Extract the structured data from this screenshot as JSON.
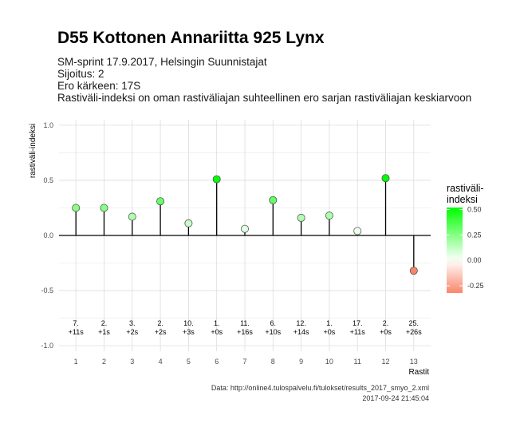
{
  "chart_data": {
    "type": "lollipop",
    "title": "D55 Kottonen Annariitta 925 Lynx",
    "subtitle_lines": [
      "SM-sprint 17.9.2017, Helsingin Suunnistajat",
      "Sijoitus: 2",
      "Ero kärkeen: 17S",
      "Rastiväli-indeksi on oman rastiväliajan suhteellinen ero sarjan rastiväliajan keskiarvoon"
    ],
    "xlabel": "Rastit",
    "ylabel": "rastiväli-indeksi",
    "ylim": [
      -1.05,
      1.05
    ],
    "yticks": [
      -1.0,
      -0.5,
      0.0,
      0.5,
      1.0
    ],
    "ytick_labels": [
      "-1.0",
      "-0.5",
      "0.0",
      "0.5",
      "1.0"
    ],
    "x": [
      1,
      2,
      3,
      4,
      5,
      6,
      7,
      8,
      9,
      10,
      11,
      12,
      13
    ],
    "values": [
      0.25,
      0.25,
      0.17,
      0.31,
      0.11,
      0.51,
      0.06,
      0.32,
      0.16,
      0.18,
      0.04,
      0.52,
      -0.32
    ],
    "annotations": [
      [
        "7.",
        "+11s"
      ],
      [
        "2.",
        "+1s"
      ],
      [
        "3.",
        "+2s"
      ],
      [
        "2.",
        "+2s"
      ],
      [
        "10.",
        "+3s"
      ],
      [
        "1.",
        "+0s"
      ],
      [
        "11.",
        "+16s"
      ],
      [
        "6.",
        "+10s"
      ],
      [
        "12.",
        "+14s"
      ],
      [
        "1.",
        "+0s"
      ],
      [
        "17.",
        "+11s"
      ],
      [
        "2.",
        "+0s"
      ],
      [
        "25.",
        "+26s"
      ]
    ],
    "annotation_y": -0.86,
    "grid": true,
    "legend": {
      "title_lines": [
        "rastiväli-",
        "indeksi"
      ],
      "placement": "right",
      "ticks": [
        0.5,
        0.25,
        0.0,
        -0.25
      ],
      "tick_labels": [
        "0.50",
        "0.25",
        "0.00",
        "-0.25"
      ],
      "range": [
        -0.32,
        0.52
      ]
    },
    "colors": {
      "low": "#f8866b",
      "mid": "#ffffff",
      "high": "#00ff00",
      "stem": "#000000",
      "grid_major": "#dcdcdc",
      "grid_minor": "#eeeeee"
    },
    "caption_lines": [
      "Data: http://online4.tulospalvelu.fi/tulokset/results_2017_smyo_2.xml",
      "2017-09-24 21:45:04"
    ]
  }
}
